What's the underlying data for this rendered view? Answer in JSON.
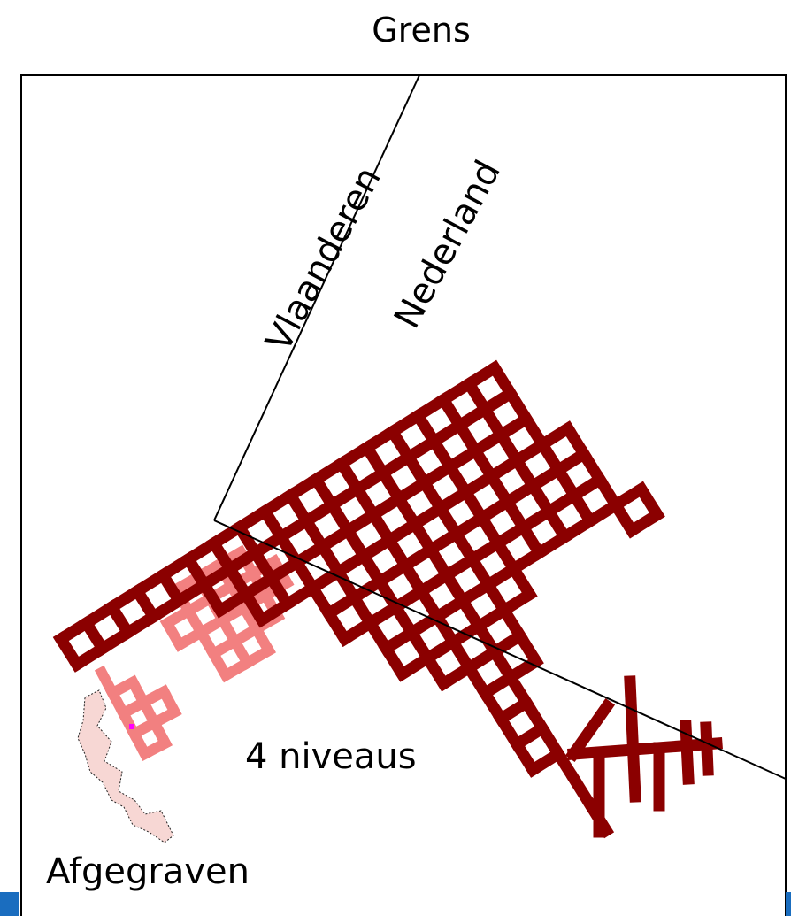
{
  "map": {
    "title": "Grens",
    "region_left": "Vlaanderen",
    "region_right": "Nederland",
    "level_label": "4 niveaus",
    "excavated_label": "Afgegraven"
  },
  "colors": {
    "tunnels": "#8b0000",
    "tunnels_lower": "#f28080",
    "excavated_fill": "#f7d7d4",
    "border_line": "#000000",
    "accent_bar": "#1a6dbf"
  }
}
